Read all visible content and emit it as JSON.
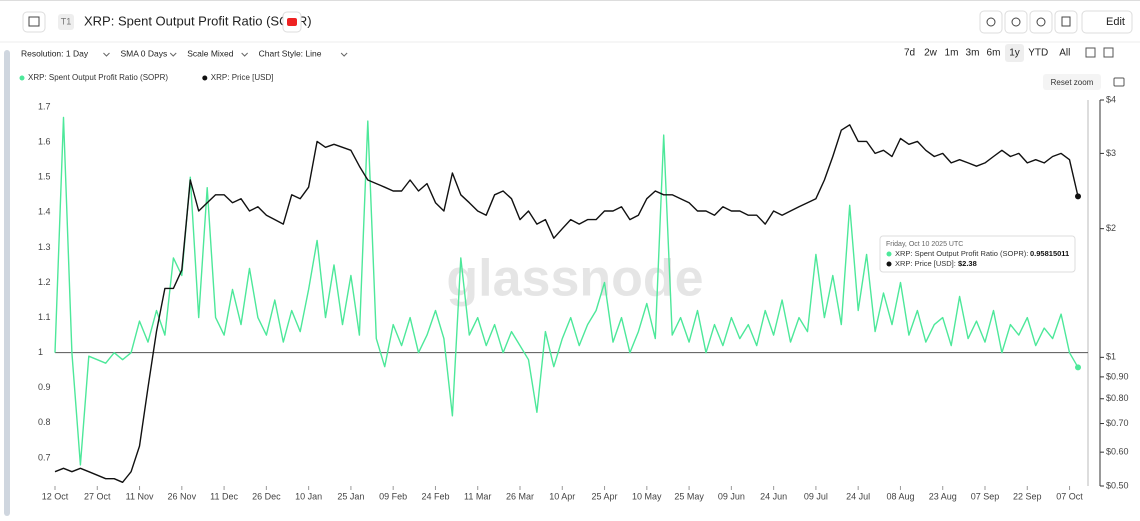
{
  "ui": {
    "tag": "T1",
    "header_title": "XRP: Spent Output Profit Ratio (SOPR)",
    "edit": "Edit",
    "controls": [
      "Resolution: 1 Day",
      "SMA 0 Days",
      "Scale Mixed",
      "Chart Style: Line"
    ],
    "ranges": [
      "7d",
      "2w",
      "1m",
      "3m",
      "6m",
      "1y",
      "YTD",
      "All"
    ],
    "active_range": "1y",
    "reset_zoom": "Reset zoom",
    "watermark": "glassnode",
    "tooltip": {
      "date": "Friday, Oct 10 2025 UTC",
      "rows": [
        {
          "label": "XRP: Spent Output Profit Ratio (SOPR):",
          "value": "0.95815011"
        },
        {
          "label": "XRP: Price [USD]:",
          "value": "$2.38"
        }
      ]
    }
  },
  "chart_data": {
    "type": "line",
    "categories": [
      "12 Oct",
      null,
      null,
      null,
      null,
      "27 Oct",
      null,
      null,
      null,
      null,
      "11 Nov",
      null,
      null,
      null,
      null,
      "26 Nov",
      null,
      null,
      null,
      null,
      "11 Dec",
      null,
      null,
      null,
      null,
      "26 Dec",
      null,
      null,
      null,
      null,
      "10 Jan",
      null,
      null,
      null,
      null,
      "25 Jan",
      null,
      null,
      null,
      null,
      "09 Feb",
      null,
      null,
      null,
      null,
      "24 Feb",
      null,
      null,
      null,
      null,
      "11 Mar",
      null,
      null,
      null,
      null,
      "26 Mar",
      null,
      null,
      null,
      null,
      "10 Apr",
      null,
      null,
      null,
      null,
      "25 Apr",
      null,
      null,
      null,
      null,
      "10 May",
      null,
      null,
      null,
      null,
      "25 May",
      null,
      null,
      null,
      null,
      "09 Jun",
      null,
      null,
      null,
      null,
      "24 Jun",
      null,
      null,
      null,
      null,
      "09 Jul",
      null,
      null,
      null,
      null,
      "24 Jul",
      null,
      null,
      null,
      null,
      "08 Aug",
      null,
      null,
      null,
      null,
      "23 Aug",
      null,
      null,
      null,
      null,
      "07 Sep",
      null,
      null,
      null,
      null,
      "22 Sep",
      null,
      null,
      null,
      null,
      "07 Oct",
      null
    ],
    "series": [
      {
        "name": "XRP: Spent Output Profit Ratio (SOPR)",
        "color": "#4de89a",
        "axis": "y",
        "values": [
          1.0,
          1.67,
          1.0,
          0.68,
          0.99,
          0.98,
          0.97,
          1.0,
          0.98,
          1.0,
          1.09,
          1.03,
          1.12,
          1.05,
          1.27,
          1.22,
          1.5,
          1.1,
          1.47,
          1.1,
          1.05,
          1.18,
          1.08,
          1.24,
          1.1,
          1.05,
          1.15,
          1.03,
          1.12,
          1.06,
          1.18,
          1.32,
          1.1,
          1.25,
          1.08,
          1.22,
          1.05,
          1.66,
          1.04,
          0.96,
          1.08,
          1.02,
          1.1,
          1.0,
          1.05,
          1.12,
          1.04,
          0.82,
          1.27,
          1.05,
          1.1,
          1.02,
          1.08,
          1.0,
          1.06,
          1.02,
          0.98,
          0.83,
          1.06,
          0.96,
          1.04,
          1.1,
          1.02,
          1.08,
          1.12,
          1.2,
          1.03,
          1.1,
          1.0,
          1.06,
          1.14,
          1.04,
          1.62,
          1.05,
          1.1,
          1.03,
          1.12,
          1.0,
          1.08,
          1.02,
          1.1,
          1.04,
          1.08,
          1.02,
          1.12,
          1.05,
          1.15,
          1.03,
          1.1,
          1.06,
          1.28,
          1.1,
          1.22,
          1.08,
          1.42,
          1.12,
          1.28,
          1.06,
          1.17,
          1.08,
          1.2,
          1.05,
          1.12,
          1.03,
          1.08,
          1.1,
          1.02,
          1.16,
          1.04,
          1.09,
          1.03,
          1.12,
          1.0,
          1.08,
          1.05,
          1.1,
          1.02,
          1.07,
          1.04,
          1.11,
          1.0,
          0.95815011
        ]
      },
      {
        "name": "XRP: Price [USD]",
        "color": "#111111",
        "axis": "y2",
        "values": [
          0.54,
          0.55,
          0.54,
          0.55,
          0.54,
          0.53,
          0.52,
          0.52,
          0.51,
          0.54,
          0.62,
          0.85,
          1.15,
          1.45,
          1.45,
          1.6,
          2.6,
          2.2,
          2.3,
          2.4,
          2.4,
          2.3,
          2.35,
          2.2,
          2.25,
          2.15,
          2.1,
          2.05,
          2.4,
          2.35,
          2.5,
          3.2,
          3.1,
          3.15,
          3.1,
          3.05,
          2.8,
          2.6,
          2.55,
          2.5,
          2.45,
          2.45,
          2.6,
          2.45,
          2.55,
          2.3,
          2.2,
          2.7,
          2.4,
          2.3,
          2.2,
          2.15,
          2.4,
          2.45,
          2.35,
          2.1,
          2.2,
          2.05,
          2.1,
          1.9,
          2.0,
          2.1,
          2.05,
          2.1,
          2.1,
          2.2,
          2.2,
          2.25,
          2.1,
          2.15,
          2.35,
          2.45,
          2.4,
          2.4,
          2.35,
          2.3,
          2.2,
          2.2,
          2.15,
          2.25,
          2.2,
          2.2,
          2.15,
          2.15,
          2.05,
          2.2,
          2.15,
          2.2,
          2.25,
          2.3,
          2.35,
          2.6,
          2.95,
          3.4,
          3.5,
          3.2,
          3.2,
          3.0,
          3.05,
          2.95,
          3.25,
          3.15,
          3.2,
          3.05,
          2.95,
          3.0,
          2.85,
          2.9,
          2.85,
          2.8,
          2.85,
          2.95,
          3.05,
          2.95,
          3.0,
          2.85,
          2.9,
          2.85,
          2.95,
          3.0,
          2.9,
          2.38
        ]
      }
    ],
    "ylim": [
      0.62,
      1.72
    ],
    "yticks": [
      0.7,
      0.8,
      0.9,
      1,
      1.1,
      1.2,
      1.3,
      1.4,
      1.5,
      1.6,
      1.7
    ],
    "y2lim": [
      0.5,
      4
    ],
    "y2log": true,
    "y2ticks": [
      {
        "value": 4,
        "label": "$4"
      },
      {
        "value": 3,
        "label": "$3"
      },
      {
        "value": 2,
        "label": "$2"
      },
      {
        "value": 1,
        "label": "$1"
      },
      {
        "value": 0.9,
        "label": "$0.90"
      },
      {
        "value": 0.8,
        "label": "$0.80"
      },
      {
        "value": 0.7,
        "label": "$0.70"
      },
      {
        "value": 0.6,
        "label": "$0.60"
      },
      {
        "value": 0.5,
        "label": "$0.50"
      }
    ],
    "hline": 1,
    "grid": false
  }
}
